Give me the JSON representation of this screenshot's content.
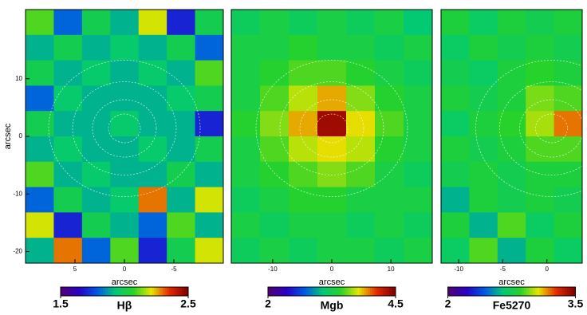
{
  "chart_data": [
    {
      "type": "heatmap",
      "xlabel": "arcsec",
      "ylabel": "arcsec",
      "colorbar_label": "Hβ",
      "clim": [
        1.5,
        2.5
      ],
      "colorbar_ticks": [
        1.5,
        2.5
      ],
      "xlim": [
        10,
        -10
      ],
      "xticks": [
        5,
        0,
        -5
      ],
      "ylim": [
        -22,
        22
      ],
      "yticks": [
        -20,
        -10,
        0,
        10
      ],
      "values": [
        [
          2.1,
          1.8,
          2.0,
          1.9,
          2.2,
          1.7,
          2.0
        ],
        [
          1.9,
          2.0,
          1.9,
          1.95,
          1.9,
          2.0,
          1.8
        ],
        [
          2.0,
          1.9,
          1.95,
          1.9,
          1.95,
          1.9,
          2.1
        ],
        [
          1.8,
          1.95,
          1.9,
          1.9,
          1.9,
          1.95,
          2.0
        ],
        [
          2.0,
          1.9,
          1.9,
          1.95,
          1.9,
          1.9,
          1.7
        ],
        [
          1.9,
          1.95,
          1.9,
          1.9,
          1.95,
          1.9,
          2.0
        ],
        [
          2.1,
          1.9,
          1.95,
          1.9,
          1.9,
          2.0,
          1.9
        ],
        [
          1.8,
          2.0,
          1.9,
          1.95,
          2.3,
          1.9,
          2.2
        ],
        [
          2.2,
          1.7,
          2.0,
          1.9,
          1.8,
          2.1,
          1.9
        ],
        [
          1.9,
          2.3,
          1.8,
          2.1,
          1.7,
          2.0,
          2.2
        ]
      ]
    },
    {
      "type": "heatmap",
      "xlabel": "arcsec",
      "colorbar_label": "Mgb",
      "clim": [
        2,
        4.5
      ],
      "colorbar_ticks": [
        2,
        4.5
      ],
      "xlim": [
        -17,
        17
      ],
      "xticks": [
        -10,
        0,
        10
      ],
      "values": [
        [
          3.2,
          3.3,
          3.2,
          3.3,
          3.2,
          3.3,
          3.1
        ],
        [
          3.3,
          3.3,
          3.4,
          3.3,
          3.3,
          3.2,
          3.3
        ],
        [
          3.3,
          3.4,
          3.5,
          3.5,
          3.4,
          3.3,
          3.2
        ],
        [
          3.3,
          3.5,
          3.7,
          3.9,
          3.6,
          3.4,
          3.3
        ],
        [
          3.4,
          3.6,
          3.9,
          4.4,
          3.8,
          3.5,
          3.3
        ],
        [
          3.3,
          3.5,
          3.7,
          3.8,
          3.7,
          3.4,
          3.3
        ],
        [
          3.3,
          3.4,
          3.5,
          3.6,
          3.5,
          3.3,
          3.2
        ],
        [
          3.2,
          3.3,
          3.4,
          3.4,
          3.3,
          3.3,
          3.3
        ],
        [
          3.3,
          3.2,
          3.3,
          3.3,
          3.2,
          3.3,
          3.2
        ],
        [
          3.2,
          3.3,
          3.2,
          3.3,
          3.3,
          3.2,
          3.3
        ]
      ]
    },
    {
      "type": "heatmap",
      "xlabel": "arcsec",
      "colorbar_label": "Fe5270",
      "clim": [
        2,
        3.5
      ],
      "colorbar_ticks": [
        2,
        3.5
      ],
      "xlim": [
        -12,
        4
      ],
      "xticks": [
        -10,
        -5,
        0
      ],
      "values": [
        [
          2.8,
          2.7,
          2.8,
          2.75,
          2.8
        ],
        [
          2.7,
          2.8,
          2.75,
          2.8,
          2.75
        ],
        [
          2.75,
          2.7,
          2.8,
          2.85,
          2.8
        ],
        [
          2.8,
          2.75,
          2.8,
          2.95,
          2.9
        ],
        [
          2.7,
          2.8,
          2.85,
          3.0,
          3.2
        ],
        [
          2.8,
          2.75,
          2.8,
          2.9,
          2.9
        ],
        [
          2.75,
          2.8,
          2.75,
          2.8,
          2.8
        ],
        [
          2.6,
          2.8,
          2.75,
          2.8,
          2.75
        ],
        [
          2.8,
          2.6,
          2.9,
          2.7,
          2.8
        ],
        [
          2.7,
          2.9,
          2.6,
          2.8,
          2.7
        ]
      ]
    }
  ]
}
